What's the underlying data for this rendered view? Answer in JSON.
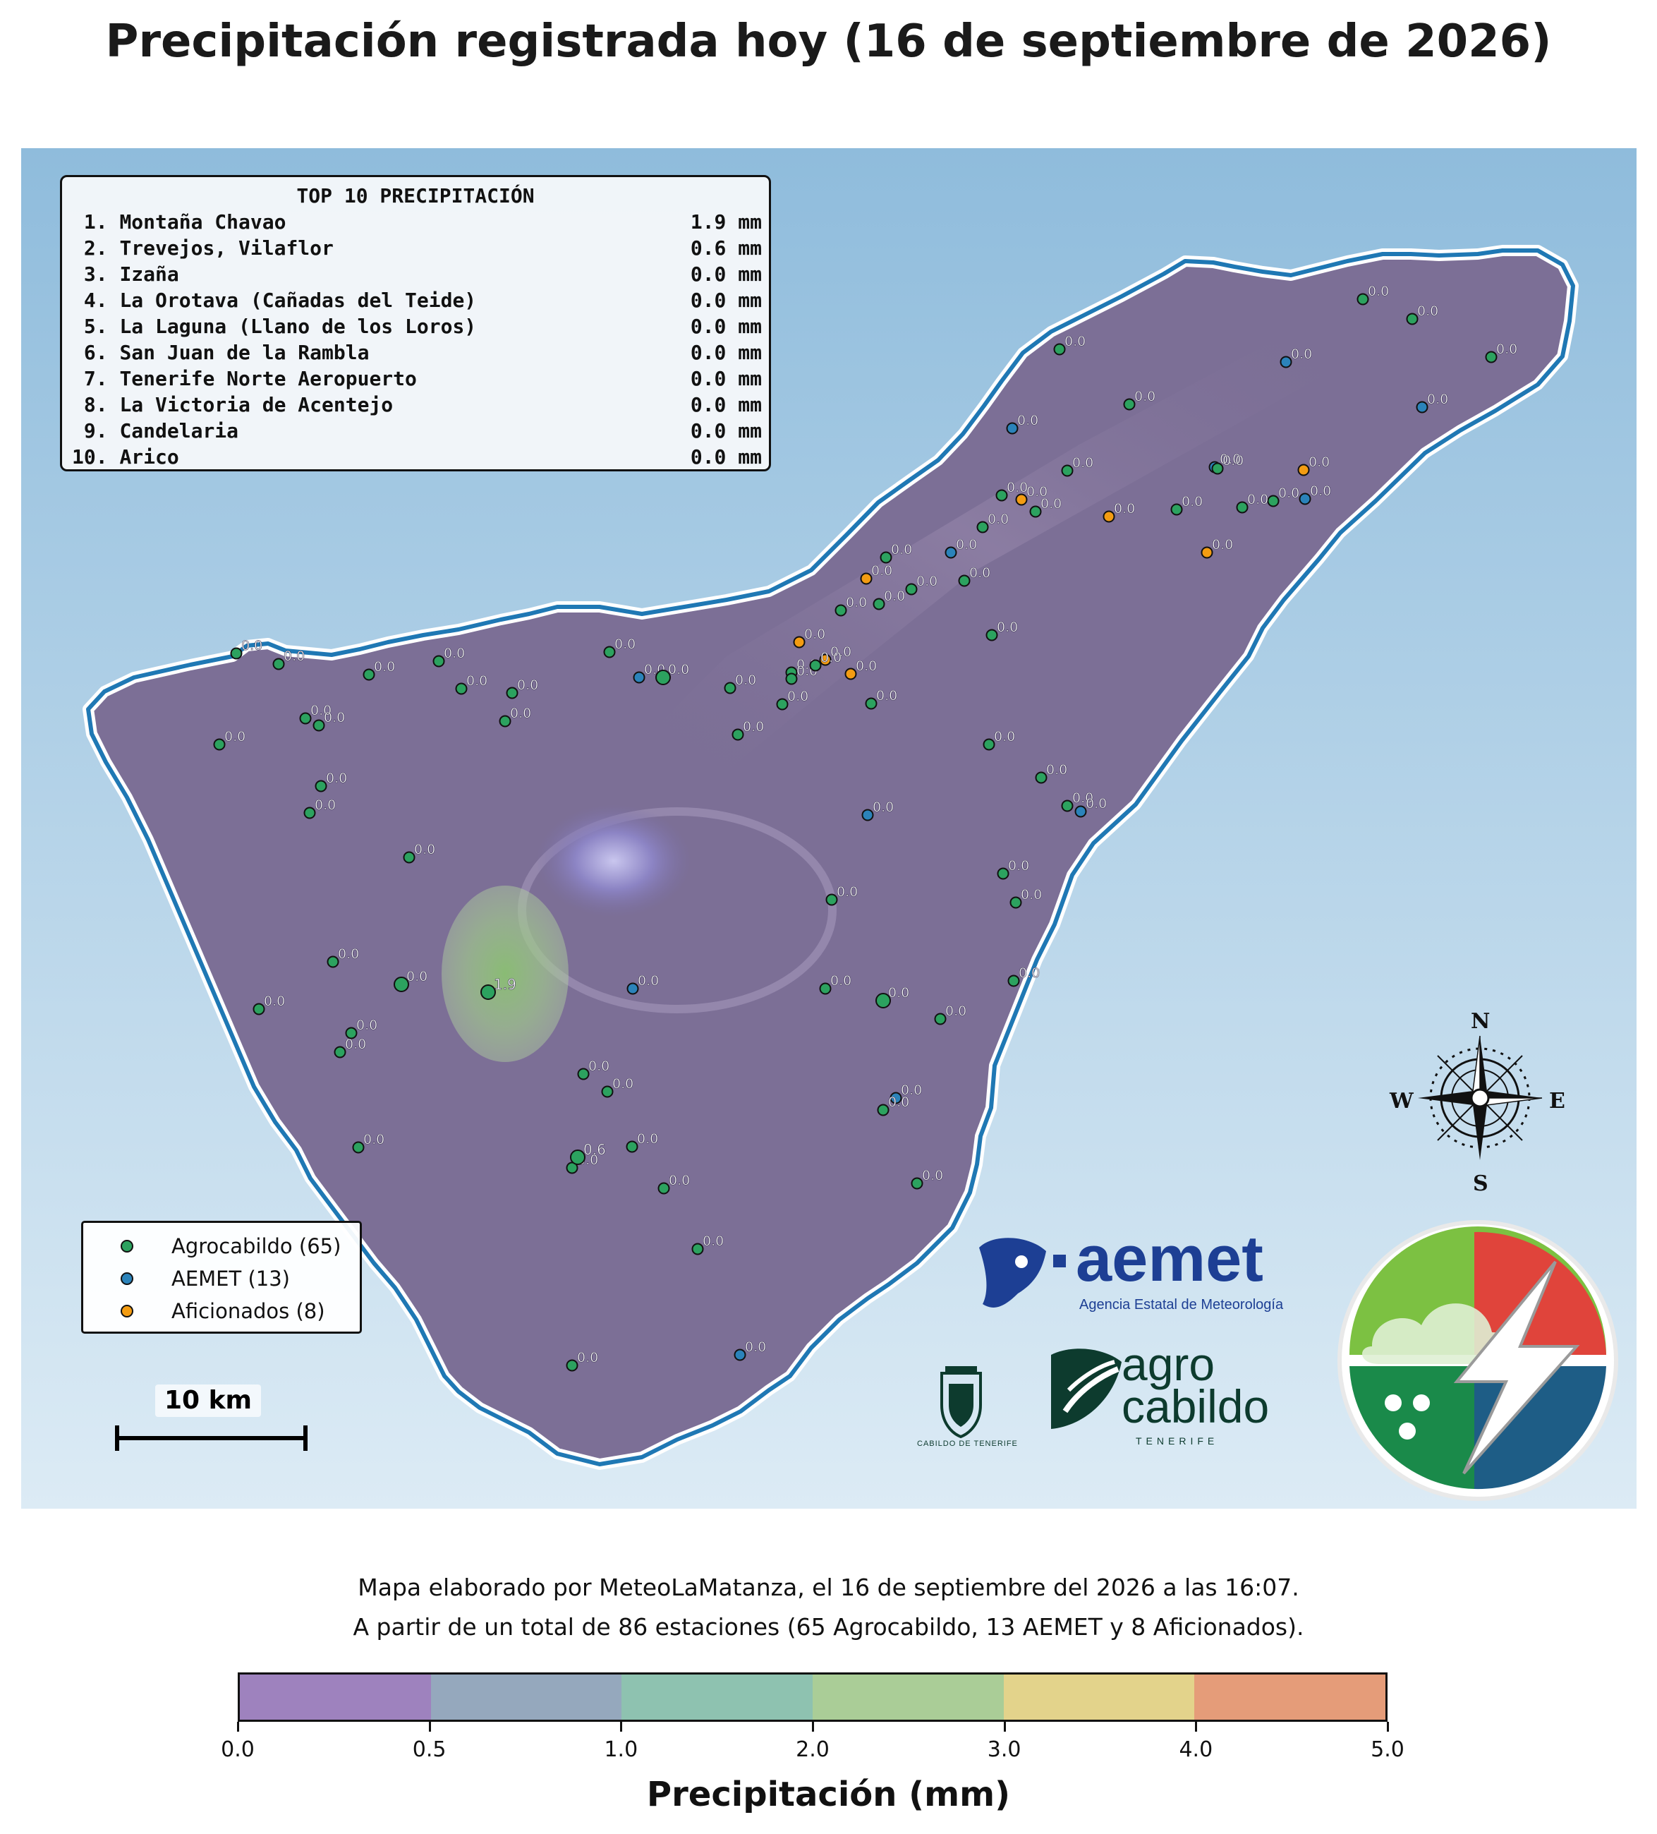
{
  "title": "Precipitación registrada hoy (16 de septiembre de 2026)",
  "top10": {
    "header": "TOP 10 PRECIPITACIÓN",
    "rows": [
      {
        "rank": " 1.",
        "name": "Montaña Chavao",
        "value": "1.9 mm"
      },
      {
        "rank": " 2.",
        "name": "Trevejos, Vilaflor",
        "value": "0.6 mm"
      },
      {
        "rank": " 3.",
        "name": "Izaña",
        "value": "0.0 mm"
      },
      {
        "rank": " 4.",
        "name": "La Orotava (Cañadas del Teide)",
        "value": "0.0 mm"
      },
      {
        "rank": " 5.",
        "name": "La Laguna (Llano de los Loros)",
        "value": "0.0 mm"
      },
      {
        "rank": " 6.",
        "name": "San Juan de la Rambla",
        "value": "0.0 mm"
      },
      {
        "rank": " 7.",
        "name": "Tenerife Norte Aeropuerto",
        "value": "0.0 mm"
      },
      {
        "rank": " 8.",
        "name": "La Victoria de Acentejo",
        "value": "0.0 mm"
      },
      {
        "rank": " 9.",
        "name": "Candelaria",
        "value": "0.0 mm"
      },
      {
        "rank": "10.",
        "name": "Arico",
        "value": "0.0 mm"
      }
    ]
  },
  "legend": [
    {
      "label": "Agrocabildo (65)",
      "color": "#2ca25f"
    },
    {
      "label": "AEMET (13)",
      "color": "#2b83ba"
    },
    {
      "label": "Aficionados (8)",
      "color": "#f39c12"
    }
  ],
  "scale_label": "10 km",
  "compass": {
    "n": "N",
    "s": "S",
    "e": "E",
    "w": "W"
  },
  "logos": {
    "aemet_word": "aemet",
    "aemet_sub": "Agencia Estatal de Meteorología",
    "agro_word_1": "agro",
    "agro_word_2": "cabildo",
    "agro_sub": "TENERIFE",
    "cabildo_text": "CABILDO DE TENERIFE"
  },
  "footer_line1": "Mapa elaborado por MeteoLaMatanza, el 16 de septiembre del 2026 a las 16:07.",
  "footer_line2": "A partir de un total de 86 estaciones (65 Agrocabildo, 13 AEMET y 8 Aficionados).",
  "colorbar": {
    "title": "Precipitación (mm)",
    "ticks": [
      "0.0",
      "0.5",
      "1.0",
      "2.0",
      "3.0",
      "4.0",
      "5.0"
    ],
    "colors": [
      "#9e82be",
      "#95a8bd",
      "#8ec2b0",
      "#aacd97",
      "#e3d38b",
      "#e59c79"
    ]
  },
  "stations_label_default": "0.0",
  "stations_label_max": "1.9",
  "stations_label_second": "0.6"
}
